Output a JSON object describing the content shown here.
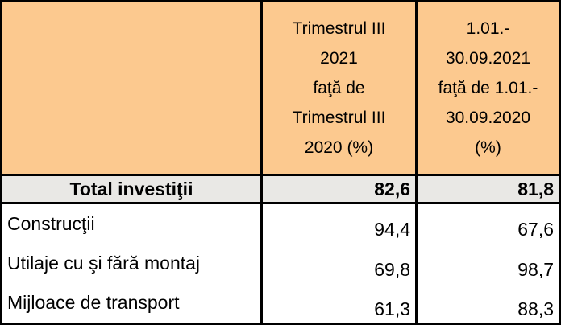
{
  "table": {
    "header": {
      "corner": "",
      "col2": "Trimestrul III\n2021\nfaţă de\nTrimestrul III\n2020 (%)",
      "col3": "1.01.-\n30.09.2021\nfaţă de 1.01.-\n30.09.2020\n(%)"
    },
    "total": {
      "label": "Total investiţii",
      "values": [
        "82,6",
        "81,8"
      ]
    },
    "rows": [
      {
        "label": "Construcţii",
        "values": [
          "94,4",
          "67,6"
        ]
      },
      {
        "label": "Utilaje cu şi fără montaj",
        "values": [
          "69,8",
          "98,7"
        ]
      },
      {
        "label": "Mijloace de transport",
        "values": [
          "61,3",
          "88,3"
        ]
      }
    ]
  },
  "colors": {
    "header_bg": "#fcc98f",
    "total_row_bg": "#e9e8e5",
    "border": "#000000",
    "body_bg": "#ffffff",
    "text": "#000000"
  },
  "chart_data": {
    "type": "table",
    "title": "",
    "columns": [
      "",
      "Trimestrul III 2021 faţă de Trimestrul III 2020 (%)",
      "1.01.-30.09.2021 faţă de 1.01.-30.09.2020 (%)"
    ],
    "rows": [
      {
        "label": "Total investiţii",
        "values": [
          82.6,
          81.8
        ],
        "emphasis": "bold"
      },
      {
        "label": "Construcţii",
        "values": [
          94.4,
          67.6
        ]
      },
      {
        "label": "Utilaje cu şi fără montaj",
        "values": [
          69.8,
          98.7
        ]
      },
      {
        "label": "Mijloace de transport",
        "values": [
          61.3,
          88.3
        ]
      }
    ],
    "number_format": "decimal-comma",
    "notes": "values are percentage indices"
  }
}
